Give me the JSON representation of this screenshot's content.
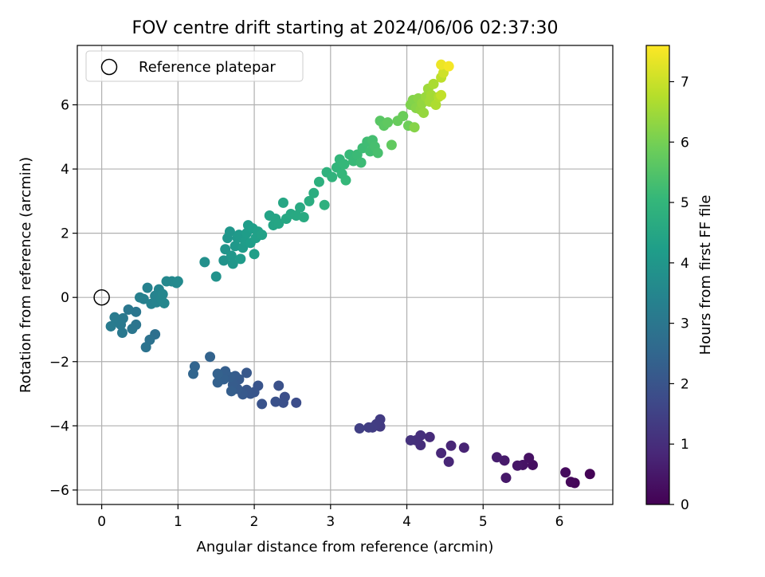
{
  "chart_data": {
    "type": "scatter",
    "title": "FOV centre drift starting at 2024/06/06 02:37:30",
    "xlabel": "Angular distance from reference (arcmin)",
    "ylabel": "Rotation from reference (arcmin)",
    "xlim": [
      -0.32,
      6.7
    ],
    "ylim": [
      -6.45,
      7.85
    ],
    "xticks": [
      0,
      1,
      2,
      3,
      4,
      5,
      6
    ],
    "yticks": [
      -6,
      -4,
      -2,
      0,
      2,
      4,
      6
    ],
    "grid": true,
    "legend": {
      "location": "upper-left",
      "entries": [
        "Reference platepar"
      ]
    },
    "reference_point": {
      "label": "Reference platepar",
      "x": 0,
      "y": 0,
      "marker": "hollow-circle",
      "color": "#000000"
    },
    "colorbar": {
      "label": "Hours from first FF file",
      "range": [
        0,
        7.6
      ],
      "ticks": [
        0,
        1,
        2,
        3,
        4,
        5,
        6,
        7
      ],
      "colormap": "viridis",
      "colors": [
        "#440154",
        "#482878",
        "#3e4989",
        "#31688e",
        "#26828e",
        "#1f9e89",
        "#35b779",
        "#6ece58",
        "#b5de2b",
        "#fde725"
      ]
    },
    "points": [
      {
        "x": 6.4,
        "y": -5.5,
        "c": 0.05
      },
      {
        "x": 6.2,
        "y": -5.78,
        "c": 0.1
      },
      {
        "x": 6.15,
        "y": -5.75,
        "c": 0.15
      },
      {
        "x": 6.08,
        "y": -5.45,
        "c": 0.2
      },
      {
        "x": 5.65,
        "y": -5.22,
        "c": 0.3
      },
      {
        "x": 5.6,
        "y": -5.0,
        "c": 0.35
      },
      {
        "x": 5.52,
        "y": -5.22,
        "c": 0.4
      },
      {
        "x": 5.45,
        "y": -5.24,
        "c": 0.45
      },
      {
        "x": 5.3,
        "y": -5.62,
        "c": 0.5
      },
      {
        "x": 5.28,
        "y": -5.08,
        "c": 0.55
      },
      {
        "x": 5.18,
        "y": -4.98,
        "c": 0.6
      },
      {
        "x": 4.75,
        "y": -4.68,
        "c": 0.75
      },
      {
        "x": 4.58,
        "y": -4.62,
        "c": 0.8
      },
      {
        "x": 4.55,
        "y": -5.12,
        "c": 0.82
      },
      {
        "x": 4.45,
        "y": -4.85,
        "c": 0.85
      },
      {
        "x": 4.3,
        "y": -4.35,
        "c": 0.95
      },
      {
        "x": 4.18,
        "y": -4.6,
        "c": 1.0
      },
      {
        "x": 4.18,
        "y": -4.3,
        "c": 1.02
      },
      {
        "x": 4.12,
        "y": -4.45,
        "c": 1.05
      },
      {
        "x": 4.05,
        "y": -4.45,
        "c": 1.1
      },
      {
        "x": 3.65,
        "y": -4.02,
        "c": 1.3
      },
      {
        "x": 3.65,
        "y": -3.8,
        "c": 1.32
      },
      {
        "x": 3.6,
        "y": -3.95,
        "c": 1.35
      },
      {
        "x": 3.55,
        "y": -4.05,
        "c": 1.38
      },
      {
        "x": 3.5,
        "y": -4.05,
        "c": 1.4
      },
      {
        "x": 3.38,
        "y": -4.08,
        "c": 1.45
      },
      {
        "x": 2.55,
        "y": -3.28,
        "c": 1.8
      },
      {
        "x": 2.4,
        "y": -3.1,
        "c": 1.85
      },
      {
        "x": 2.38,
        "y": -3.28,
        "c": 1.87
      },
      {
        "x": 2.32,
        "y": -2.75,
        "c": 1.9
      },
      {
        "x": 2.28,
        "y": -3.25,
        "c": 1.92
      },
      {
        "x": 2.1,
        "y": -3.32,
        "c": 1.95
      },
      {
        "x": 2.05,
        "y": -2.75,
        "c": 2.0
      },
      {
        "x": 2.0,
        "y": -2.95,
        "c": 2.02
      },
      {
        "x": 1.95,
        "y": -3.0,
        "c": 2.05
      },
      {
        "x": 1.9,
        "y": -2.88,
        "c": 2.07
      },
      {
        "x": 1.9,
        "y": -2.35,
        "c": 2.1
      },
      {
        "x": 1.85,
        "y": -3.02,
        "c": 2.12
      },
      {
        "x": 1.8,
        "y": -2.55,
        "c": 2.15
      },
      {
        "x": 1.78,
        "y": -2.85,
        "c": 2.17
      },
      {
        "x": 1.75,
        "y": -2.45,
        "c": 2.2
      },
      {
        "x": 1.72,
        "y": -2.72,
        "c": 2.22
      },
      {
        "x": 1.7,
        "y": -2.92,
        "c": 2.25
      },
      {
        "x": 1.68,
        "y": -2.48,
        "c": 2.27
      },
      {
        "x": 1.62,
        "y": -2.3,
        "c": 2.3
      },
      {
        "x": 1.6,
        "y": -2.55,
        "c": 2.32
      },
      {
        "x": 1.52,
        "y": -2.65,
        "c": 2.35
      },
      {
        "x": 1.52,
        "y": -2.38,
        "c": 2.37
      },
      {
        "x": 1.42,
        "y": -1.85,
        "c": 2.4
      },
      {
        "x": 1.22,
        "y": -2.15,
        "c": 2.45
      },
      {
        "x": 1.2,
        "y": -2.38,
        "c": 2.47
      },
      {
        "x": 0.7,
        "y": -1.15,
        "c": 2.8
      },
      {
        "x": 0.63,
        "y": -1.32,
        "c": 2.85
      },
      {
        "x": 0.58,
        "y": -1.55,
        "c": 2.88
      },
      {
        "x": 0.45,
        "y": -0.85,
        "c": 2.95
      },
      {
        "x": 0.4,
        "y": -0.98,
        "c": 2.98
      },
      {
        "x": 0.45,
        "y": -0.45,
        "c": 3.0
      },
      {
        "x": 0.35,
        "y": -0.38,
        "c": 3.02
      },
      {
        "x": 0.27,
        "y": -1.1,
        "c": 3.05
      },
      {
        "x": 0.28,
        "y": -0.65,
        "c": 3.07
      },
      {
        "x": 0.25,
        "y": -0.85,
        "c": 3.1
      },
      {
        "x": 0.2,
        "y": -0.75,
        "c": 3.12
      },
      {
        "x": 0.17,
        "y": -0.62,
        "c": 3.14
      },
      {
        "x": 0.12,
        "y": -0.9,
        "c": 3.16
      },
      {
        "x": 0.5,
        "y": 0.0,
        "c": 3.3
      },
      {
        "x": 0.55,
        "y": -0.05,
        "c": 3.32
      },
      {
        "x": 0.6,
        "y": 0.3,
        "c": 3.35
      },
      {
        "x": 0.65,
        "y": -0.2,
        "c": 3.37
      },
      {
        "x": 0.7,
        "y": 0.05,
        "c": 3.4
      },
      {
        "x": 0.72,
        "y": -0.15,
        "c": 3.42
      },
      {
        "x": 0.75,
        "y": 0.25,
        "c": 3.45
      },
      {
        "x": 0.78,
        "y": -0.05,
        "c": 3.47
      },
      {
        "x": 0.8,
        "y": 0.1,
        "c": 3.5
      },
      {
        "x": 0.82,
        "y": -0.18,
        "c": 3.52
      },
      {
        "x": 0.85,
        "y": 0.5,
        "c": 3.55
      },
      {
        "x": 0.92,
        "y": 0.5,
        "c": 3.57
      },
      {
        "x": 0.98,
        "y": 0.45,
        "c": 3.6
      },
      {
        "x": 1.0,
        "y": 0.5,
        "c": 3.62
      },
      {
        "x": 1.35,
        "y": 1.1,
        "c": 3.8
      },
      {
        "x": 1.5,
        "y": 0.65,
        "c": 3.85
      },
      {
        "x": 1.6,
        "y": 1.15,
        "c": 3.9
      },
      {
        "x": 1.62,
        "y": 1.5,
        "c": 3.92
      },
      {
        "x": 1.65,
        "y": 1.85,
        "c": 3.95
      },
      {
        "x": 1.68,
        "y": 2.05,
        "c": 3.97
      },
      {
        "x": 1.7,
        "y": 1.3,
        "c": 4.0
      },
      {
        "x": 1.72,
        "y": 1.05,
        "c": 4.02
      },
      {
        "x": 1.75,
        "y": 1.6,
        "c": 4.05
      },
      {
        "x": 1.78,
        "y": 1.85,
        "c": 4.07
      },
      {
        "x": 1.8,
        "y": 1.95,
        "c": 4.1
      },
      {
        "x": 1.82,
        "y": 1.2,
        "c": 4.12
      },
      {
        "x": 1.85,
        "y": 1.55,
        "c": 4.14
      },
      {
        "x": 1.88,
        "y": 1.75,
        "c": 4.16
      },
      {
        "x": 1.9,
        "y": 2.0,
        "c": 4.18
      },
      {
        "x": 1.92,
        "y": 2.25,
        "c": 4.2
      },
      {
        "x": 1.95,
        "y": 1.7,
        "c": 4.22
      },
      {
        "x": 1.98,
        "y": 2.15,
        "c": 4.24
      },
      {
        "x": 2.0,
        "y": 1.35,
        "c": 4.26
      },
      {
        "x": 2.02,
        "y": 1.85,
        "c": 4.28
      },
      {
        "x": 2.05,
        "y": 2.05,
        "c": 4.3
      },
      {
        "x": 2.1,
        "y": 1.95,
        "c": 4.32
      },
      {
        "x": 2.2,
        "y": 2.55,
        "c": 4.4
      },
      {
        "x": 2.25,
        "y": 2.25,
        "c": 4.42
      },
      {
        "x": 2.28,
        "y": 2.45,
        "c": 4.44
      },
      {
        "x": 2.32,
        "y": 2.3,
        "c": 4.46
      },
      {
        "x": 2.38,
        "y": 2.95,
        "c": 4.5
      },
      {
        "x": 2.42,
        "y": 2.45,
        "c": 4.52
      },
      {
        "x": 2.48,
        "y": 2.6,
        "c": 4.55
      },
      {
        "x": 2.55,
        "y": 2.55,
        "c": 4.58
      },
      {
        "x": 2.6,
        "y": 2.8,
        "c": 4.6
      },
      {
        "x": 2.65,
        "y": 2.5,
        "c": 4.62
      },
      {
        "x": 2.72,
        "y": 3.0,
        "c": 4.68
      },
      {
        "x": 2.78,
        "y": 3.25,
        "c": 4.72
      },
      {
        "x": 2.85,
        "y": 3.6,
        "c": 4.78
      },
      {
        "x": 2.92,
        "y": 2.88,
        "c": 4.82
      },
      {
        "x": 2.95,
        "y": 3.9,
        "c": 4.85
      },
      {
        "x": 3.02,
        "y": 3.75,
        "c": 4.9
      },
      {
        "x": 3.08,
        "y": 4.05,
        "c": 4.95
      },
      {
        "x": 3.12,
        "y": 4.3,
        "c": 5.0
      },
      {
        "x": 3.15,
        "y": 3.85,
        "c": 5.02
      },
      {
        "x": 3.18,
        "y": 4.15,
        "c": 5.05
      },
      {
        "x": 3.2,
        "y": 3.65,
        "c": 5.07
      },
      {
        "x": 3.25,
        "y": 4.45,
        "c": 5.1
      },
      {
        "x": 3.3,
        "y": 4.25,
        "c": 5.12
      },
      {
        "x": 3.35,
        "y": 4.45,
        "c": 5.15
      },
      {
        "x": 3.4,
        "y": 4.2,
        "c": 5.18
      },
      {
        "x": 3.42,
        "y": 4.65,
        "c": 5.2
      },
      {
        "x": 3.48,
        "y": 4.85,
        "c": 5.23
      },
      {
        "x": 3.52,
        "y": 4.55,
        "c": 5.26
      },
      {
        "x": 3.55,
        "y": 4.9,
        "c": 5.3
      },
      {
        "x": 3.58,
        "y": 4.7,
        "c": 5.33
      },
      {
        "x": 3.62,
        "y": 4.5,
        "c": 5.36
      },
      {
        "x": 3.65,
        "y": 5.5,
        "c": 5.6
      },
      {
        "x": 3.7,
        "y": 5.35,
        "c": 5.65
      },
      {
        "x": 3.75,
        "y": 5.45,
        "c": 5.7
      },
      {
        "x": 3.8,
        "y": 4.75,
        "c": 5.72
      },
      {
        "x": 3.88,
        "y": 5.5,
        "c": 5.8
      },
      {
        "x": 3.95,
        "y": 5.65,
        "c": 5.85
      },
      {
        "x": 4.02,
        "y": 5.35,
        "c": 5.9
      },
      {
        "x": 4.05,
        "y": 6.0,
        "c": 6.1
      },
      {
        "x": 4.08,
        "y": 6.15,
        "c": 6.15
      },
      {
        "x": 4.1,
        "y": 5.3,
        "c": 6.2
      },
      {
        "x": 4.12,
        "y": 5.9,
        "c": 6.22
      },
      {
        "x": 4.15,
        "y": 6.2,
        "c": 6.25
      },
      {
        "x": 4.18,
        "y": 5.85,
        "c": 6.3
      },
      {
        "x": 4.2,
        "y": 6.05,
        "c": 6.35
      },
      {
        "x": 4.22,
        "y": 5.75,
        "c": 6.38
      },
      {
        "x": 4.25,
        "y": 6.25,
        "c": 6.42
      },
      {
        "x": 4.28,
        "y": 6.5,
        "c": 6.48
      },
      {
        "x": 4.3,
        "y": 6.1,
        "c": 6.52
      },
      {
        "x": 4.32,
        "y": 6.3,
        "c": 6.55
      },
      {
        "x": 4.35,
        "y": 6.65,
        "c": 6.62
      },
      {
        "x": 4.38,
        "y": 6.0,
        "c": 6.66
      },
      {
        "x": 4.42,
        "y": 6.25,
        "c": 6.72
      },
      {
        "x": 4.45,
        "y": 6.85,
        "c": 6.85
      },
      {
        "x": 4.45,
        "y": 6.3,
        "c": 6.9
      },
      {
        "x": 4.48,
        "y": 7.0,
        "c": 7.05
      },
      {
        "x": 4.45,
        "y": 7.25,
        "c": 7.4
      },
      {
        "x": 4.55,
        "y": 7.2,
        "c": 7.5
      }
    ]
  }
}
